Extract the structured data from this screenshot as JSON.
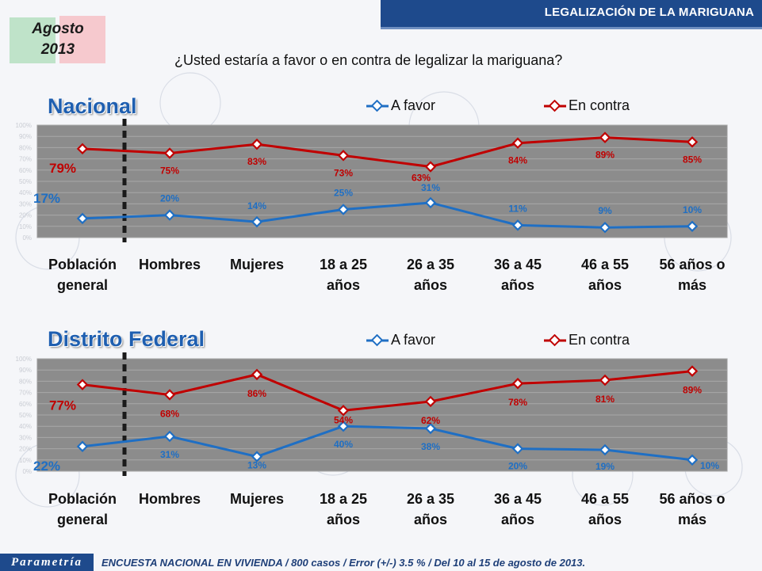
{
  "header": {
    "title": "LEGALIZACIÓN DE LA MARIGUANA",
    "date_month": "Agosto",
    "date_year": "2013"
  },
  "question": "¿Usted estaría a favor o en contra de legalizar la mariguana?",
  "legend": {
    "favor": "A favor",
    "contra": "En contra"
  },
  "colors": {
    "favor": "#1f6fc4",
    "contra": "#c00000",
    "plot_bg": "#8c8c8c",
    "header": "#1e4a8c"
  },
  "footer": {
    "brand": "Parametría",
    "text": "ENCUESTA NACIONAL EN VIVIENDA / 800 casos / Error (+/-) 3.5 % / Del 10 al 15 de agosto de 2013."
  },
  "categories": [
    [
      "Población",
      "general"
    ],
    [
      "Hombres"
    ],
    [
      "Mujeres"
    ],
    [
      "18 a 25",
      "años"
    ],
    [
      "26 a 35",
      "años"
    ],
    [
      "36 a 45",
      "años"
    ],
    [
      "46 a 55",
      "años"
    ],
    [
      "56 años o",
      "más"
    ]
  ],
  "chart_data": [
    {
      "type": "line",
      "title": "Nacional",
      "categories": [
        "Población general",
        "Hombres",
        "Mujeres",
        "18 a 25 años",
        "26 a 35 años",
        "36 a 45 años",
        "46 a 55 años",
        "56 años o más"
      ],
      "ylim": [
        0,
        100
      ],
      "yticks": [
        "0%",
        "10%",
        "20%",
        "30%",
        "40%",
        "50%",
        "60%",
        "70%",
        "80%",
        "90%",
        "100%"
      ],
      "series": [
        {
          "name": "A favor",
          "values": [
            17,
            20,
            14,
            25,
            31,
            11,
            9,
            10
          ],
          "labels": [
            "17%",
            "20%",
            "14%",
            "25%",
            "31%",
            "11%",
            "9%",
            "10%"
          ]
        },
        {
          "name": "En contra",
          "values": [
            79,
            75,
            83,
            73,
            63,
            84,
            89,
            85
          ],
          "labels": [
            "79%",
            "75%",
            "83%",
            "73%",
            "63%",
            "84%",
            "89%",
            "85%"
          ]
        }
      ]
    },
    {
      "type": "line",
      "title": "Distrito Federal",
      "categories": [
        "Población general",
        "Hombres",
        "Mujeres",
        "18 a 25 años",
        "26 a 35 años",
        "36 a 45 años",
        "46 a 55 años",
        "56 años o más"
      ],
      "ylim": [
        0,
        100
      ],
      "yticks": [
        "0%",
        "10%",
        "20%",
        "30%",
        "40%",
        "50%",
        "60%",
        "70%",
        "80%",
        "90%",
        "100%"
      ],
      "series": [
        {
          "name": "A favor",
          "values": [
            22,
            31,
            13,
            40,
            38,
            20,
            19,
            10
          ],
          "labels": [
            "22%",
            "31%",
            "13%",
            "40%",
            "38%",
            "20%",
            "19%",
            "10%"
          ]
        },
        {
          "name": "En contra",
          "values": [
            77,
            68,
            86,
            54,
            62,
            78,
            81,
            89
          ],
          "labels": [
            "77%",
            "68%",
            "86%",
            "54%",
            "62%",
            "78%",
            "81%",
            "89%"
          ]
        }
      ]
    }
  ]
}
